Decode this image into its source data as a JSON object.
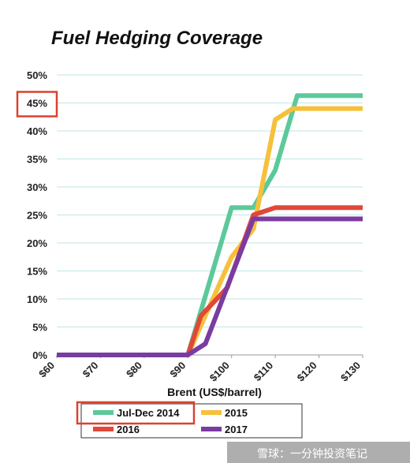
{
  "chart_data": {
    "type": "line",
    "title": "Fuel Hedging Coverage",
    "xlabel": "Brent  (US$/barrel)",
    "ylabel": "",
    "x_tick_labels": [
      "$60",
      "$70",
      "$80",
      "$90",
      "$100",
      "$110",
      "$120",
      "$130"
    ],
    "x_tick_values": [
      60,
      70,
      80,
      90,
      100,
      110,
      120,
      130
    ],
    "y_tick_labels": [
      "0%",
      "5%",
      "10%",
      "15%",
      "20%",
      "25%",
      "30%",
      "35%",
      "40%",
      "45%",
      "50%"
    ],
    "y_tick_values": [
      0,
      5,
      10,
      15,
      20,
      25,
      30,
      35,
      40,
      45,
      50
    ],
    "xlim": [
      60,
      130
    ],
    "ylim": [
      0,
      50
    ],
    "grid": "horizontal",
    "legend_position": "bottom",
    "highlight_y_tick": "45%",
    "highlight_legend": "Jul-Dec 2014",
    "series": [
      {
        "name": "Jul-Dec 2014",
        "color": "#5cc99a",
        "x": [
          60,
          90,
          100,
          105,
          110,
          115,
          130
        ],
        "y": [
          0,
          0,
          26.3,
          26.3,
          33,
          46.3,
          46.3
        ]
      },
      {
        "name": "2015",
        "color": "#f5c13c",
        "x": [
          60,
          90,
          100,
          105,
          110,
          114,
          130
        ],
        "y": [
          0,
          0,
          17.5,
          22.5,
          42,
          44,
          44
        ]
      },
      {
        "name": "2016",
        "color": "#e0483a",
        "x": [
          60,
          90,
          93,
          99,
          105,
          110,
          130
        ],
        "y": [
          0,
          0,
          7,
          12,
          25,
          26.3,
          26.3
        ]
      },
      {
        "name": "2017",
        "color": "#7a3ca0",
        "x": [
          60,
          90,
          94,
          105,
          130
        ],
        "y": [
          0,
          0,
          2,
          24.3,
          24.3
        ]
      }
    ]
  },
  "watermark": "雪球：一分钟投资笔记"
}
